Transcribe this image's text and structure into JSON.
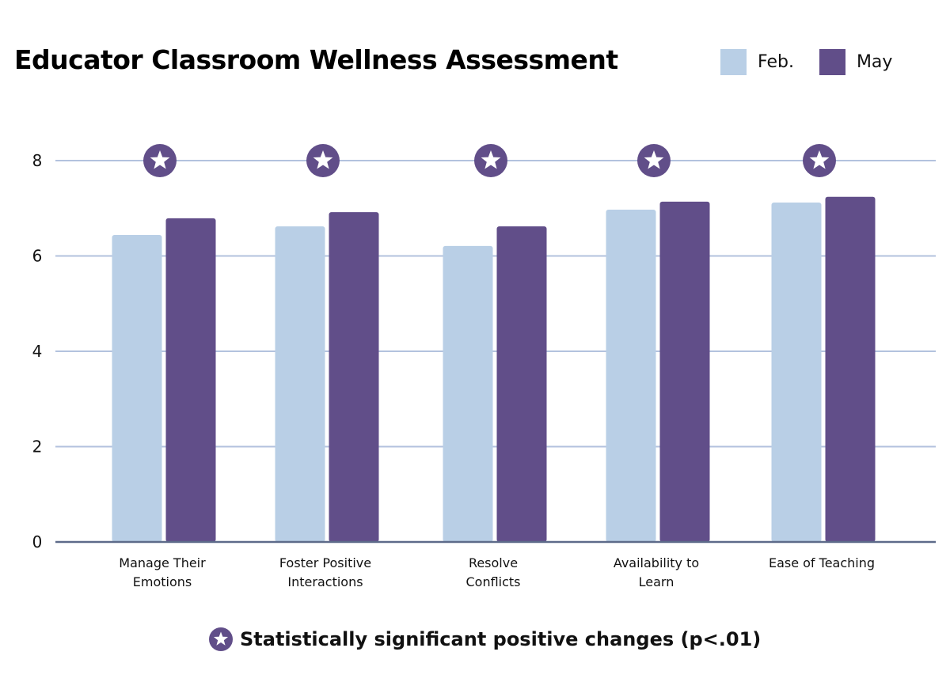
{
  "chart_data": {
    "type": "bar",
    "title": "Educator Classroom Wellness Assessment",
    "categories": [
      [
        "Manage Their",
        "Emotions"
      ],
      [
        "Foster Positive",
        "Interactions"
      ],
      [
        "Resolve",
        "Conflicts"
      ],
      [
        "Availability to",
        "Learn"
      ],
      [
        "Ease of Teaching"
      ]
    ],
    "series": [
      {
        "name": "Feb.",
        "color": "#b9cfe6",
        "values": [
          6.44,
          6.62,
          6.21,
          6.97,
          7.12
        ]
      },
      {
        "name": "May",
        "color": "#614e89",
        "values": [
          6.79,
          6.92,
          6.62,
          7.14,
          7.24
        ]
      }
    ],
    "significant": [
      true,
      true,
      true,
      true,
      true
    ],
    "xlabel": "",
    "ylabel": "",
    "ylim": [
      0,
      8
    ],
    "yticks": [
      0,
      2,
      4,
      6,
      8
    ],
    "grid": true,
    "legend_position": "top-right",
    "grid_color": "#b3c2de",
    "axis_color": "#5d6b8a",
    "marker_color": "#614e89",
    "footnote": "Statistically significant positive changes (p<.01)"
  }
}
